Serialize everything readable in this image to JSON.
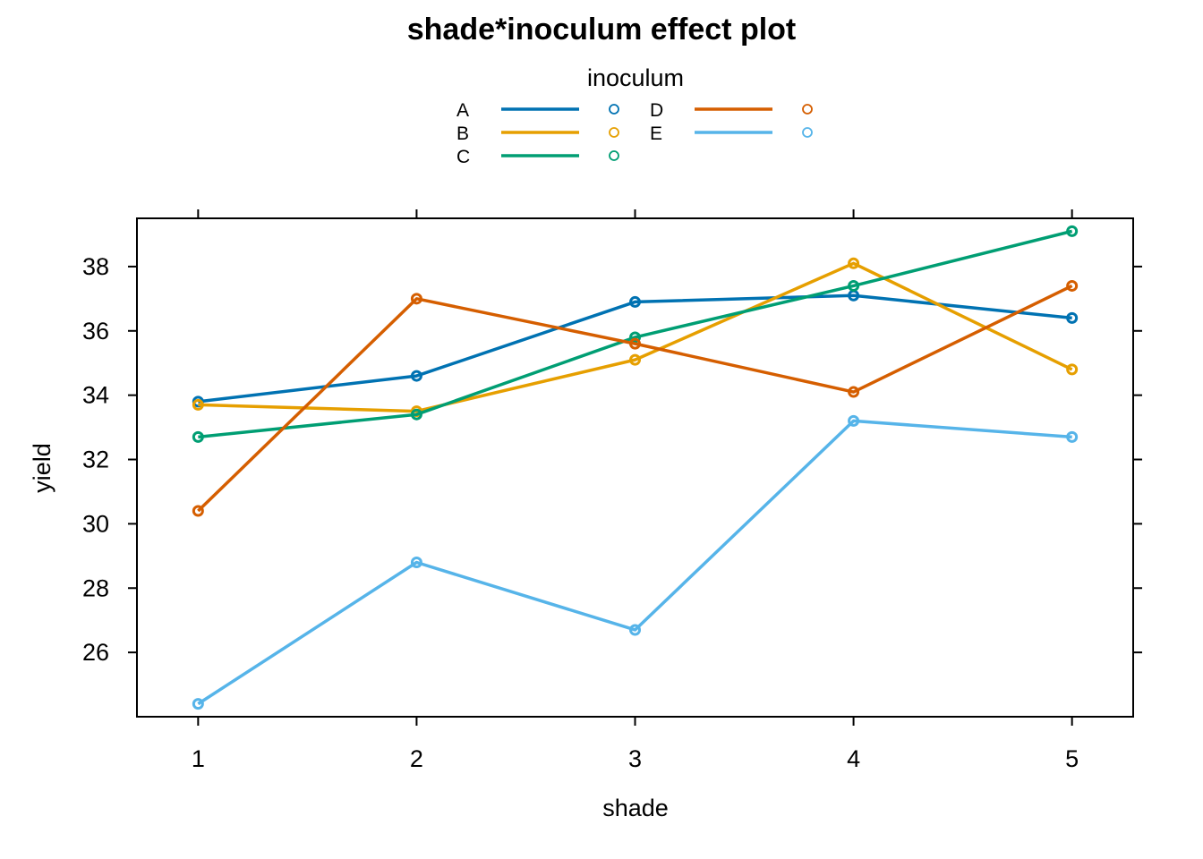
{
  "chart_data": {
    "type": "line",
    "title": "shade*inoculum effect plot",
    "xlabel": "shade",
    "ylabel": "yield",
    "legend_title": "inoculum",
    "legend_position": "top",
    "x": [
      1,
      2,
      3,
      4,
      5
    ],
    "x_ticks": [
      "1",
      "2",
      "3",
      "4",
      "5"
    ],
    "y_ticks": [
      "26",
      "28",
      "30",
      "32",
      "34",
      "36",
      "38"
    ],
    "xlim": [
      0.72,
      5.28
    ],
    "ylim": [
      24.0,
      39.5
    ],
    "grid": false,
    "series": [
      {
        "name": "A",
        "color": "#0072B2",
        "values": [
          33.8,
          34.6,
          36.9,
          37.1,
          36.4
        ]
      },
      {
        "name": "B",
        "color": "#E69F00",
        "values": [
          33.7,
          33.5,
          35.1,
          38.1,
          34.8
        ]
      },
      {
        "name": "C",
        "color": "#009E73",
        "values": [
          32.7,
          33.4,
          35.8,
          37.4,
          39.1
        ]
      },
      {
        "name": "D",
        "color": "#D55E00",
        "values": [
          30.4,
          37.0,
          35.6,
          34.1,
          37.4
        ]
      },
      {
        "name": "E",
        "color": "#56B4E9",
        "values": [
          24.4,
          28.8,
          26.7,
          33.2,
          32.7
        ]
      }
    ]
  }
}
